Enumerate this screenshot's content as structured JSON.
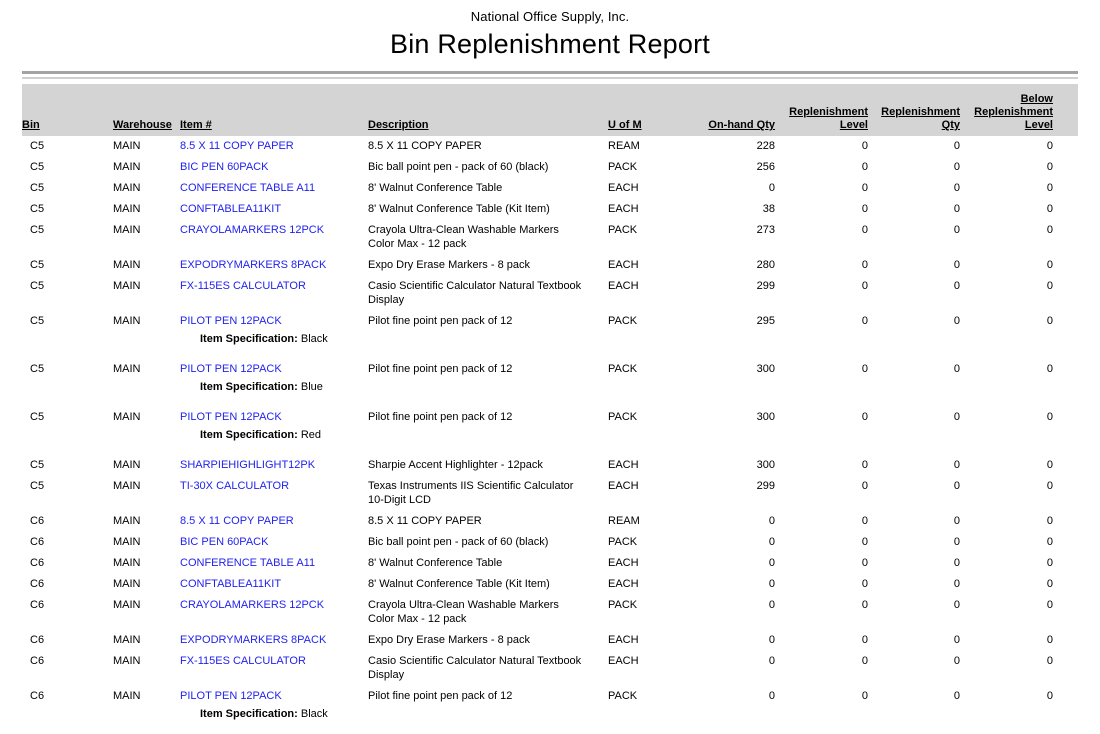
{
  "report": {
    "company": "National Office Supply, Inc.",
    "title": "Bin Replenishment Report"
  },
  "colors": {
    "item_link": "#2222ee",
    "header_band": "#d4d4d4",
    "rule_dark": "#a3a3a3",
    "rule_light": "#cfcfcf"
  },
  "table": {
    "spec_label": "Item Specification:",
    "columns": [
      {
        "key": "bin",
        "align": "left",
        "lines": [
          "Bin"
        ]
      },
      {
        "key": "warehouse",
        "align": "left",
        "lines": [
          "Warehouse"
        ]
      },
      {
        "key": "item",
        "align": "left",
        "lines": [
          "Item #"
        ]
      },
      {
        "key": "description",
        "align": "left",
        "lines": [
          "Description"
        ]
      },
      {
        "key": "uom",
        "align": "left",
        "lines": [
          "U of M"
        ]
      },
      {
        "key": "onhand",
        "align": "right",
        "lines": [
          "On-hand Qty"
        ]
      },
      {
        "key": "level",
        "align": "right",
        "lines": [
          "Replenishment",
          "Level"
        ]
      },
      {
        "key": "qty",
        "align": "right",
        "lines": [
          "Replenishment",
          "Qty"
        ]
      },
      {
        "key": "below",
        "align": "right",
        "lines": [
          "Below",
          "Replenishment",
          "Level"
        ]
      }
    ],
    "rows": [
      {
        "bin": "C5",
        "warehouse": "MAIN",
        "item": "8.5 X 11 COPY PAPER",
        "description": "8.5 X 11 COPY PAPER",
        "uom": "REAM",
        "onhand": "228",
        "level": "0",
        "qty": "0",
        "below": "0"
      },
      {
        "bin": "C5",
        "warehouse": "MAIN",
        "item": "BIC PEN 60PACK",
        "description": "Bic ball point pen - pack of 60 (black)",
        "uom": "PACK",
        "onhand": "256",
        "level": "0",
        "qty": "0",
        "below": "0"
      },
      {
        "bin": "C5",
        "warehouse": "MAIN",
        "item": "CONFERENCE TABLE A11",
        "description": "8' Walnut Conference Table",
        "uom": "EACH",
        "onhand": "0",
        "level": "0",
        "qty": "0",
        "below": "0"
      },
      {
        "bin": "C5",
        "warehouse": "MAIN",
        "item": "CONFTABLEA11KIT",
        "description": "8' Walnut Conference Table (Kit Item)",
        "uom": "EACH",
        "onhand": "38",
        "level": "0",
        "qty": "0",
        "below": "0"
      },
      {
        "bin": "C5",
        "warehouse": "MAIN",
        "item": "CRAYOLAMARKERS 12PCK",
        "description": "Crayola Ultra-Clean Washable Markers Color Max - 12 pack",
        "uom": "PACK",
        "onhand": "273",
        "level": "0",
        "qty": "0",
        "below": "0"
      },
      {
        "bin": "C5",
        "warehouse": "MAIN",
        "item": "EXPODRYMARKERS 8PACK",
        "description": "Expo Dry Erase Markers - 8 pack",
        "uom": "EACH",
        "onhand": "280",
        "level": "0",
        "qty": "0",
        "below": "0"
      },
      {
        "bin": "C5",
        "warehouse": "MAIN",
        "item": "FX-115ES CALCULATOR",
        "description": "Casio Scientific Calculator Natural Textbook Display",
        "uom": "EACH",
        "onhand": "299",
        "level": "0",
        "qty": "0",
        "below": "0"
      },
      {
        "bin": "C5",
        "warehouse": "MAIN",
        "item": "PILOT PEN 12PACK",
        "description": "Pilot fine point pen pack of 12",
        "uom": "PACK",
        "onhand": "295",
        "level": "0",
        "qty": "0",
        "below": "0",
        "spec": "Black"
      },
      {
        "bin": "C5",
        "warehouse": "MAIN",
        "item": "PILOT PEN 12PACK",
        "description": "Pilot fine point pen pack of 12",
        "uom": "PACK",
        "onhand": "300",
        "level": "0",
        "qty": "0",
        "below": "0",
        "spec": "Blue"
      },
      {
        "bin": "C5",
        "warehouse": "MAIN",
        "item": "PILOT PEN 12PACK",
        "description": "Pilot fine point pen pack of 12",
        "uom": "PACK",
        "onhand": "300",
        "level": "0",
        "qty": "0",
        "below": "0",
        "spec": "Red"
      },
      {
        "bin": "C5",
        "warehouse": "MAIN",
        "item": "SHARPIEHIGHLIGHT12PK",
        "description": "Sharpie Accent Highlighter - 12pack",
        "uom": "EACH",
        "onhand": "300",
        "level": "0",
        "qty": "0",
        "below": "0"
      },
      {
        "bin": "C5",
        "warehouse": "MAIN",
        "item": "TI-30X CALCULATOR",
        "description": "Texas Instruments IIS Scientific Calculator 10-Digit LCD",
        "uom": "EACH",
        "onhand": "299",
        "level": "0",
        "qty": "0",
        "below": "0"
      },
      {
        "bin": "C6",
        "warehouse": "MAIN",
        "item": "8.5 X 11 COPY PAPER",
        "description": "8.5 X 11 COPY PAPER",
        "uom": "REAM",
        "onhand": "0",
        "level": "0",
        "qty": "0",
        "below": "0"
      },
      {
        "bin": "C6",
        "warehouse": "MAIN",
        "item": "BIC PEN 60PACK",
        "description": "Bic ball point pen - pack of 60 (black)",
        "uom": "PACK",
        "onhand": "0",
        "level": "0",
        "qty": "0",
        "below": "0"
      },
      {
        "bin": "C6",
        "warehouse": "MAIN",
        "item": "CONFERENCE TABLE A11",
        "description": "8' Walnut Conference Table",
        "uom": "EACH",
        "onhand": "0",
        "level": "0",
        "qty": "0",
        "below": "0"
      },
      {
        "bin": "C6",
        "warehouse": "MAIN",
        "item": "CONFTABLEA11KIT",
        "description": "8' Walnut Conference Table (Kit Item)",
        "uom": "EACH",
        "onhand": "0",
        "level": "0",
        "qty": "0",
        "below": "0"
      },
      {
        "bin": "C6",
        "warehouse": "MAIN",
        "item": "CRAYOLAMARKERS 12PCK",
        "description": "Crayola Ultra-Clean Washable Markers Color Max - 12 pack",
        "uom": "PACK",
        "onhand": "0",
        "level": "0",
        "qty": "0",
        "below": "0"
      },
      {
        "bin": "C6",
        "warehouse": "MAIN",
        "item": "EXPODRYMARKERS 8PACK",
        "description": "Expo Dry Erase Markers - 8 pack",
        "uom": "EACH",
        "onhand": "0",
        "level": "0",
        "qty": "0",
        "below": "0"
      },
      {
        "bin": "C6",
        "warehouse": "MAIN",
        "item": "FX-115ES CALCULATOR",
        "description": "Casio Scientific Calculator Natural Textbook Display",
        "uom": "EACH",
        "onhand": "0",
        "level": "0",
        "qty": "0",
        "below": "0"
      },
      {
        "bin": "C6",
        "warehouse": "MAIN",
        "item": "PILOT PEN 12PACK",
        "description": "Pilot fine point pen pack of 12",
        "uom": "PACK",
        "onhand": "0",
        "level": "0",
        "qty": "0",
        "below": "0",
        "spec": "Black"
      }
    ]
  }
}
